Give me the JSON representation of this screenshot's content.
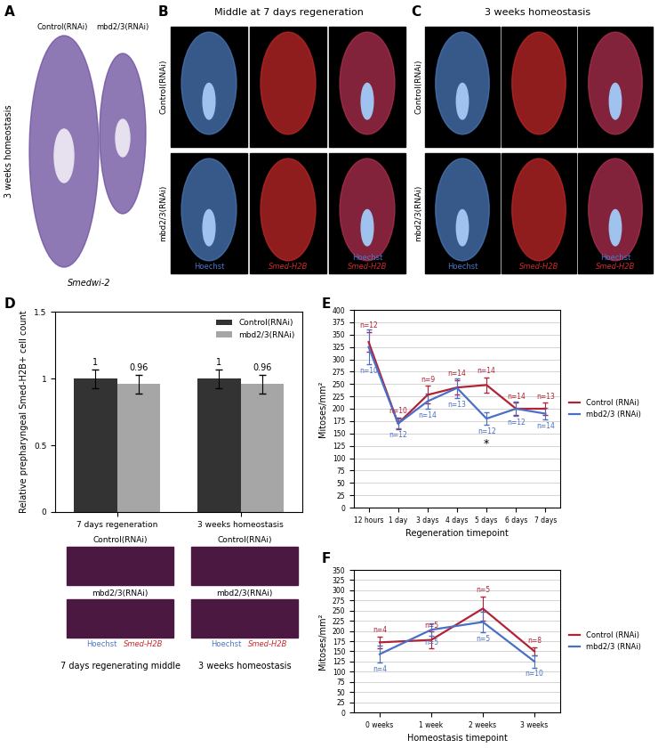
{
  "panel_letters": [
    "A",
    "B",
    "C",
    "D",
    "E",
    "F"
  ],
  "panel_a": {
    "labels": [
      "Control(RNAi)",
      "mbd2/3(RNAi)"
    ],
    "side_label": "3 weeks homeostasis",
    "stain": "Smedwi-2"
  },
  "panel_b": {
    "title": "Middle at 7 days regeneration",
    "rows": [
      "Control(RNAi)",
      "mbd2/3(RNAi)"
    ],
    "channels": [
      "Hoechst",
      "Smed-H2B"
    ]
  },
  "panel_c": {
    "title": "3 weeks homeostasis",
    "rows": [
      "Control(RNAi)",
      "mbd2/3(RNAi)"
    ],
    "channels": [
      "Hoechst",
      "Smed-H2B"
    ]
  },
  "panel_d_insets": {
    "rows": [
      "Control(RNAi)",
      "mbd2/3(RNAi)"
    ],
    "channels": [
      "Hoechst",
      "Smed-H2B"
    ],
    "captions": [
      "7 days regenerating middle",
      "3 weeks homeostasis"
    ]
  },
  "chart_data": [
    {
      "type": "bar",
      "y_label": "Relative prepharyngeal Smed-H2B+ cell count",
      "categories": [
        "7 days regeneration",
        "3 weeks homeostasis"
      ],
      "series": [
        {
          "name": "Control(RNAi)",
          "color": "#333333",
          "values": [
            1,
            1
          ],
          "errors": [
            0.07,
            0.07
          ]
        },
        {
          "name": "mbd2/3(RNAi)",
          "color": "#a6a6a6",
          "values": [
            0.96,
            0.96
          ],
          "errors": [
            0.07,
            0.07
          ]
        }
      ],
      "ylim": [
        0,
        1.5
      ],
      "yticks": [
        0,
        0.5,
        1,
        1.5
      ],
      "data_labels": true,
      "legend": "upper right"
    },
    {
      "type": "line",
      "x_label": "Regeneration timepoint",
      "y_label": "Mitoses/mm²",
      "categories": [
        "12 hours",
        "1 day",
        "3 days",
        "4 days",
        "5 days",
        "6 days",
        "7 days"
      ],
      "series": [
        {
          "name": "Control (RNAi)",
          "color": "#b22234",
          "values": [
            335,
            170,
            228,
            243,
            248,
            200,
            200
          ],
          "errors": [
            20,
            12,
            18,
            15,
            15,
            12,
            12
          ],
          "n_labels": [
            "n=12",
            "n=10",
            "n=9",
            "n=14",
            "n=14",
            "n=14",
            "n=13"
          ]
        },
        {
          "name": "mbd2/3 (RNAi)",
          "color": "#4a6fc7",
          "values": [
            325,
            170,
            215,
            242,
            180,
            200,
            190
          ],
          "errors": [
            35,
            10,
            15,
            20,
            12,
            15,
            12
          ],
          "n_labels": [
            "n=10",
            "n=12",
            "n=14",
            "n=13",
            "n=12",
            "n=12",
            "n=14"
          ]
        }
      ],
      "annotations": [
        {
          "text": "*",
          "category": "5 days",
          "series": "mbd2/3 (RNAi)"
        }
      ],
      "ylim": [
        0,
        400
      ],
      "yticks": [
        0,
        25,
        50,
        75,
        100,
        125,
        150,
        175,
        200,
        225,
        250,
        275,
        300,
        325,
        350,
        375,
        400
      ],
      "grid": true,
      "legend": "right"
    },
    {
      "type": "line",
      "x_label": "Homeostasis timepoint",
      "y_label": "Mitoses/mm²",
      "categories": [
        "0 weeks",
        "1 week",
        "2 weeks",
        "3 weeks"
      ],
      "series": [
        {
          "name": "Control (RNAi)",
          "color": "#b22234",
          "values": [
            172,
            178,
            255,
            150
          ],
          "errors": [
            15,
            20,
            30,
            10
          ],
          "n_labels": [
            "n=4",
            "n=5",
            "n=5",
            "n=8"
          ]
        },
        {
          "name": "mbd2/3 (RNAi)",
          "color": "#4a6fc7",
          "values": [
            143,
            203,
            222,
            125
          ],
          "errors": [
            20,
            15,
            25,
            15
          ],
          "n_labels": [
            "n=4",
            "n=5",
            "n=5",
            "n=10"
          ]
        }
      ],
      "ylim": [
        0,
        350
      ],
      "yticks": [
        0,
        25,
        50,
        75,
        100,
        125,
        150,
        175,
        200,
        225,
        250,
        275,
        300,
        325,
        350
      ],
      "grid": true,
      "legend": "right"
    }
  ]
}
